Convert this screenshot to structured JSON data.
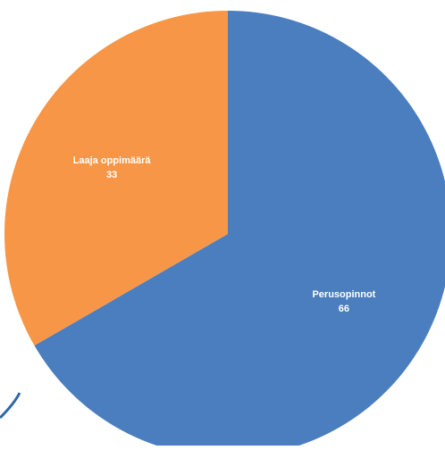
{
  "chart_data": {
    "type": "pie",
    "title": "",
    "slices": [
      {
        "label": "Perusopinnot",
        "value": 66,
        "value_label": "66",
        "color": "#4a7ebf"
      },
      {
        "label": "Laaja oppimäärä",
        "value": 33,
        "value_label": "33",
        "color": "#f79646"
      }
    ],
    "start": "12 o'clock",
    "direction": "clockwise",
    "data_labels": "inside",
    "legend": "none"
  }
}
